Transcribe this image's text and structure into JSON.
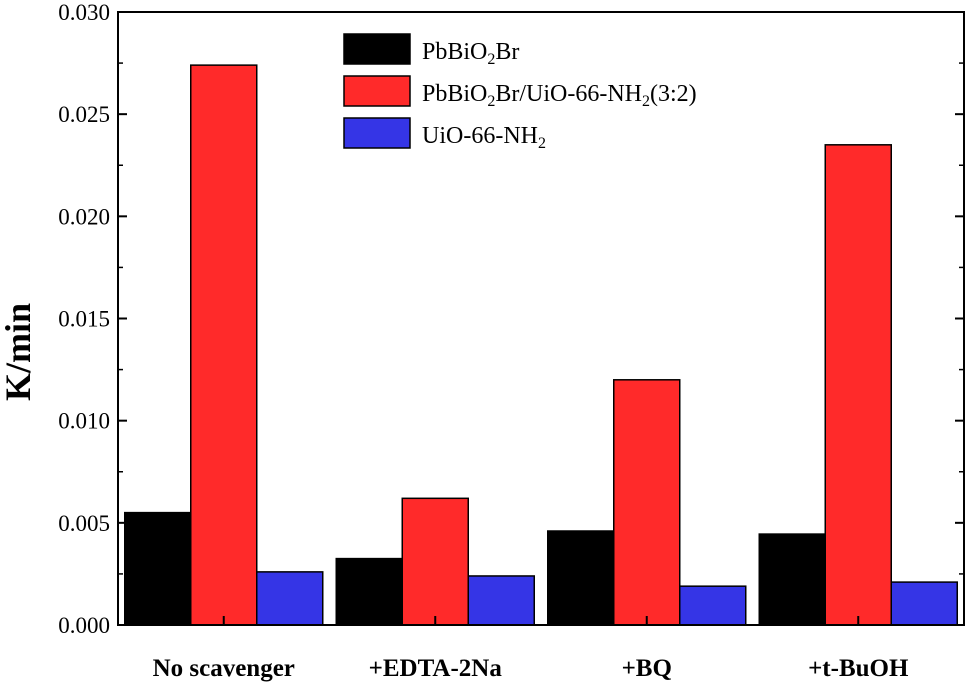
{
  "chart_data": {
    "type": "bar",
    "title": "",
    "xlabel": "",
    "ylabel": "K/min",
    "ylim": [
      0,
      0.03
    ],
    "yticks": [
      0.0,
      0.005,
      0.01,
      0.015,
      0.02,
      0.025,
      0.03
    ],
    "ytick_labels": [
      "0.000",
      "0.005",
      "0.010",
      "0.015",
      "0.020",
      "0.025",
      "0.030"
    ],
    "categories": [
      "No scavenger",
      "+EDTA-2Na",
      "+BQ",
      "+t-BuOH"
    ],
    "legend_position": "top-center",
    "grid": false,
    "series": [
      {
        "name": "PbBiO2Br",
        "legend_parts": [
          [
            "PbBiO",
            false
          ],
          [
            "2",
            true
          ],
          [
            "Br",
            false
          ]
        ],
        "color": "#000000",
        "values": [
          0.0055,
          0.00325,
          0.0046,
          0.00445
        ]
      },
      {
        "name": "PbBiO2Br/UiO-66-NH2(3:2)",
        "legend_parts": [
          [
            "PbBiO",
            false
          ],
          [
            "2",
            true
          ],
          [
            "Br/UiO-66-NH",
            false
          ],
          [
            "2",
            true
          ],
          [
            "(3:2)",
            false
          ]
        ],
        "color": "#ff2a2a",
        "values": [
          0.0274,
          0.0062,
          0.012,
          0.0235
        ]
      },
      {
        "name": "UiO-66-NH2",
        "legend_parts": [
          [
            "UiO-66-NH",
            false
          ],
          [
            "2",
            true
          ]
        ],
        "color": "#3535e6",
        "values": [
          0.0026,
          0.0024,
          0.0019,
          0.0021
        ]
      }
    ]
  }
}
